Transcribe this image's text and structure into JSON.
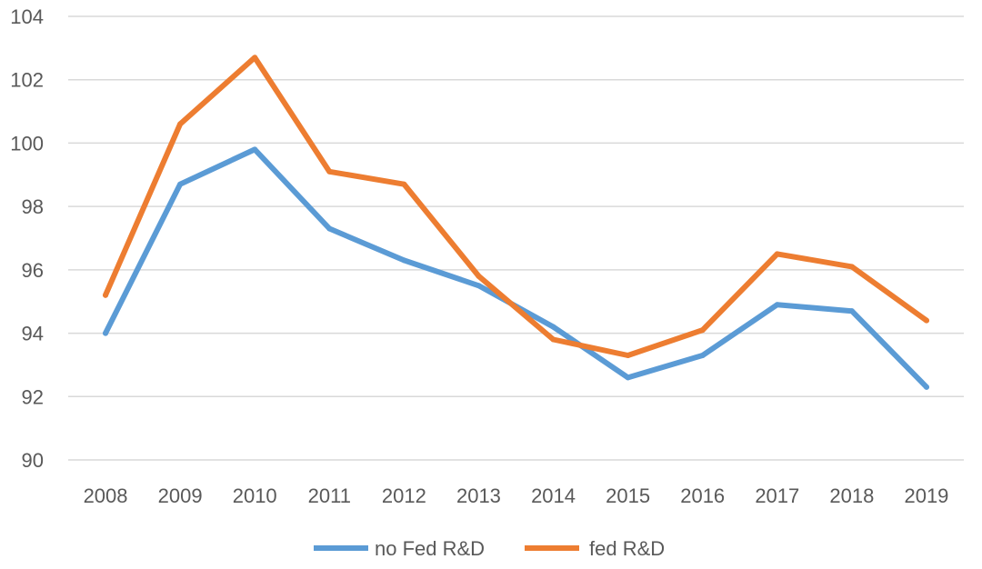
{
  "chart_data": {
    "type": "line",
    "title": "",
    "xlabel": "",
    "ylabel": "",
    "categories": [
      "2008",
      "2009",
      "2010",
      "2011",
      "2012",
      "2013",
      "2014",
      "2015",
      "2016",
      "2017",
      "2018",
      "2019"
    ],
    "ylim": [
      90,
      104
    ],
    "yticks": [
      90,
      92,
      94,
      96,
      98,
      100,
      102,
      104
    ],
    "grid": true,
    "legend_position": "bottom",
    "series": [
      {
        "name": "no Fed R&D",
        "color": "#5B9BD5",
        "values": [
          94.0,
          98.7,
          99.8,
          97.3,
          96.3,
          95.5,
          94.2,
          92.6,
          93.3,
          94.9,
          94.7,
          92.3
        ]
      },
      {
        "name": "fed R&D",
        "color": "#ED7D31",
        "values": [
          95.2,
          100.6,
          102.7,
          99.1,
          98.7,
          95.8,
          93.8,
          93.3,
          94.1,
          96.5,
          96.1,
          94.4
        ]
      }
    ]
  }
}
